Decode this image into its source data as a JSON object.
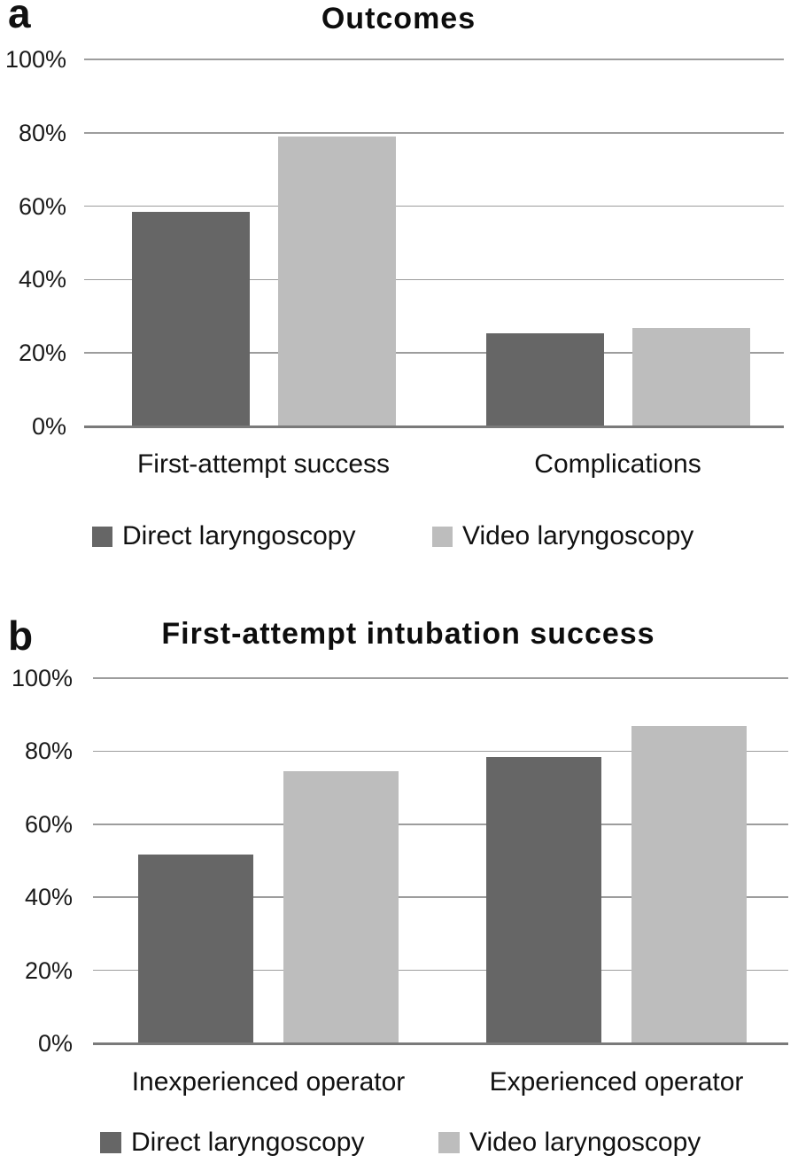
{
  "figure": {
    "background_color": "#ffffff",
    "gridline_color": "#9d9d9d",
    "axis_color": "#7a7a7a",
    "text_color": "#111111"
  },
  "chart_data": [
    {
      "type": "bar",
      "panel_label": "a",
      "title": "Outcomes",
      "categories": [
        "First-attempt success",
        "Complications"
      ],
      "series": [
        {
          "name": "Direct laryngoscopy",
          "color": "#666666",
          "values": [
            58.5,
            25.3
          ]
        },
        {
          "name": "Video laryngoscopy",
          "color": "#bdbdbd",
          "values": [
            79.1,
            26.7
          ]
        }
      ],
      "ylim": [
        0,
        100
      ],
      "yticks": [
        {
          "value": 0,
          "label": "0%"
        },
        {
          "value": 20,
          "label": "20%"
        },
        {
          "value": 40,
          "label": "40%"
        },
        {
          "value": 60,
          "label": "60%"
        },
        {
          "value": 80,
          "label": "80%"
        },
        {
          "value": 100,
          "label": "100%"
        }
      ],
      "grid": true,
      "legend_position": "bottom",
      "legend": [
        "Direct laryngoscopy",
        "Video laryngoscopy"
      ]
    },
    {
      "type": "bar",
      "panel_label": "b",
      "title": "First-attempt intubation success",
      "categories": [
        "Inexperienced operator",
        "Experienced operator"
      ],
      "series": [
        {
          "name": "Direct laryngoscopy",
          "color": "#666666",
          "values": [
            51.6,
            78.5
          ]
        },
        {
          "name": "Video laryngoscopy",
          "color": "#bdbdbd",
          "values": [
            74.4,
            86.8
          ]
        }
      ],
      "ylim": [
        0,
        100
      ],
      "yticks": [
        {
          "value": 0,
          "label": "0%"
        },
        {
          "value": 20,
          "label": "20%"
        },
        {
          "value": 40,
          "label": "40%"
        },
        {
          "value": 60,
          "label": "60%"
        },
        {
          "value": 80,
          "label": "80%"
        },
        {
          "value": 100,
          "label": "100%"
        }
      ],
      "grid": true,
      "legend_position": "bottom",
      "legend": [
        "Direct laryngoscopy",
        "Video laryngoscopy"
      ]
    }
  ]
}
